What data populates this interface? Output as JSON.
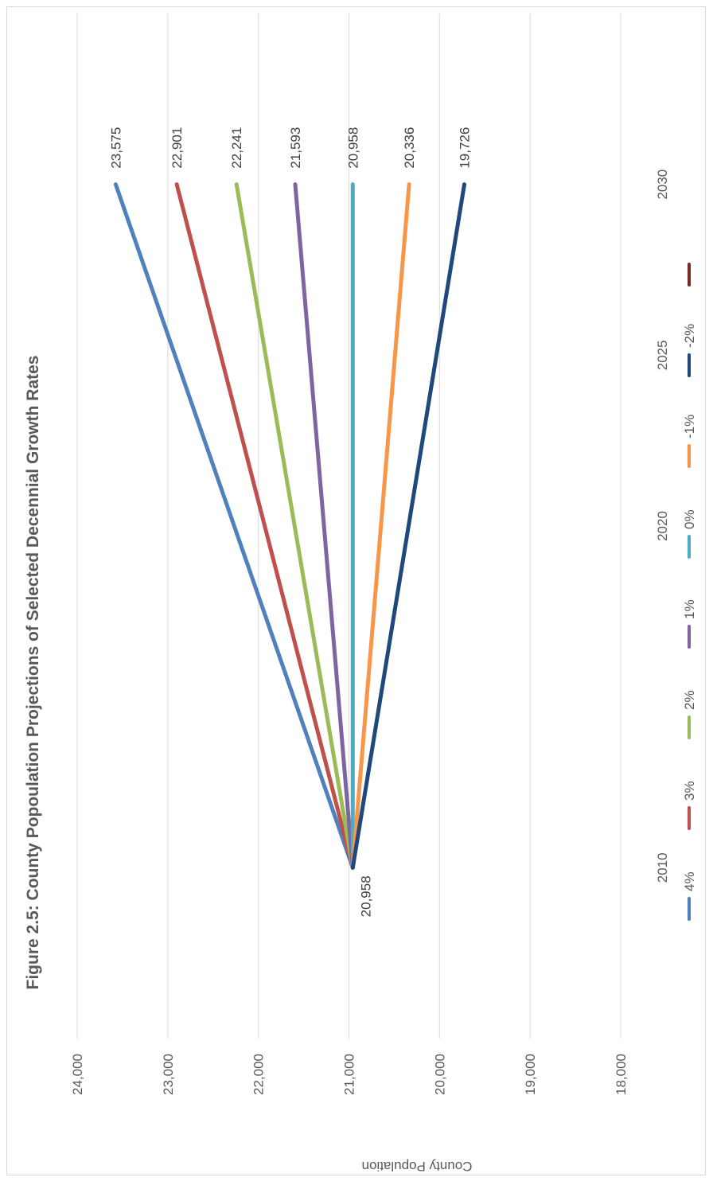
{
  "chart_data": {
    "type": "line",
    "title": "Figure 2.5: County Popoulation Projections of Selected Decennial Growth Rates",
    "ylabel": "County Population",
    "xlabel": "",
    "x_ticks": [
      "2010",
      "2020",
      "2025",
      "2030"
    ],
    "x_range": [
      2005,
      2035
    ],
    "ylim": [
      18000,
      24000
    ],
    "y_ticks": [
      "18,000",
      "19,000",
      "20,000",
      "21,000",
      "22,000",
      "23,000",
      "24,000"
    ],
    "y_tick_values": [
      18000,
      19000,
      20000,
      21000,
      22000,
      23000,
      24000
    ],
    "grid": true,
    "orientation": "rotated-90-clockwise",
    "legend_position": "bottom",
    "start_label": "20,958",
    "series": [
      {
        "name": "4%",
        "color": "#4f81bd",
        "x": [
          2010,
          2030
        ],
        "values": [
          20958,
          23575
        ],
        "end_label": "23,575"
      },
      {
        "name": "3%",
        "color": "#c0504d",
        "x": [
          2010,
          2030
        ],
        "values": [
          20958,
          22901
        ],
        "end_label": "22,901"
      },
      {
        "name": "2%",
        "color": "#9bbb59",
        "x": [
          2010,
          2030
        ],
        "values": [
          20958,
          22241
        ],
        "end_label": "22,241"
      },
      {
        "name": "1%",
        "color": "#8064a2",
        "x": [
          2010,
          2030
        ],
        "values": [
          20958,
          21593
        ],
        "end_label": "21,593"
      },
      {
        "name": "0%",
        "color": "#4bacc6",
        "x": [
          2010,
          2030
        ],
        "values": [
          20958,
          20958
        ],
        "end_label": "20,958"
      },
      {
        "name": "-1%",
        "color": "#f79646",
        "x": [
          2010,
          2030
        ],
        "values": [
          20958,
          20336
        ],
        "end_label": "20,336"
      },
      {
        "name": "-2%",
        "color": "#1f497d",
        "x": [
          2010,
          2030
        ],
        "values": [
          20958,
          19726
        ],
        "end_label": "19,726"
      },
      {
        "name": "",
        "color": "#772c2a",
        "x": [],
        "values": [],
        "end_label": ""
      }
    ]
  }
}
